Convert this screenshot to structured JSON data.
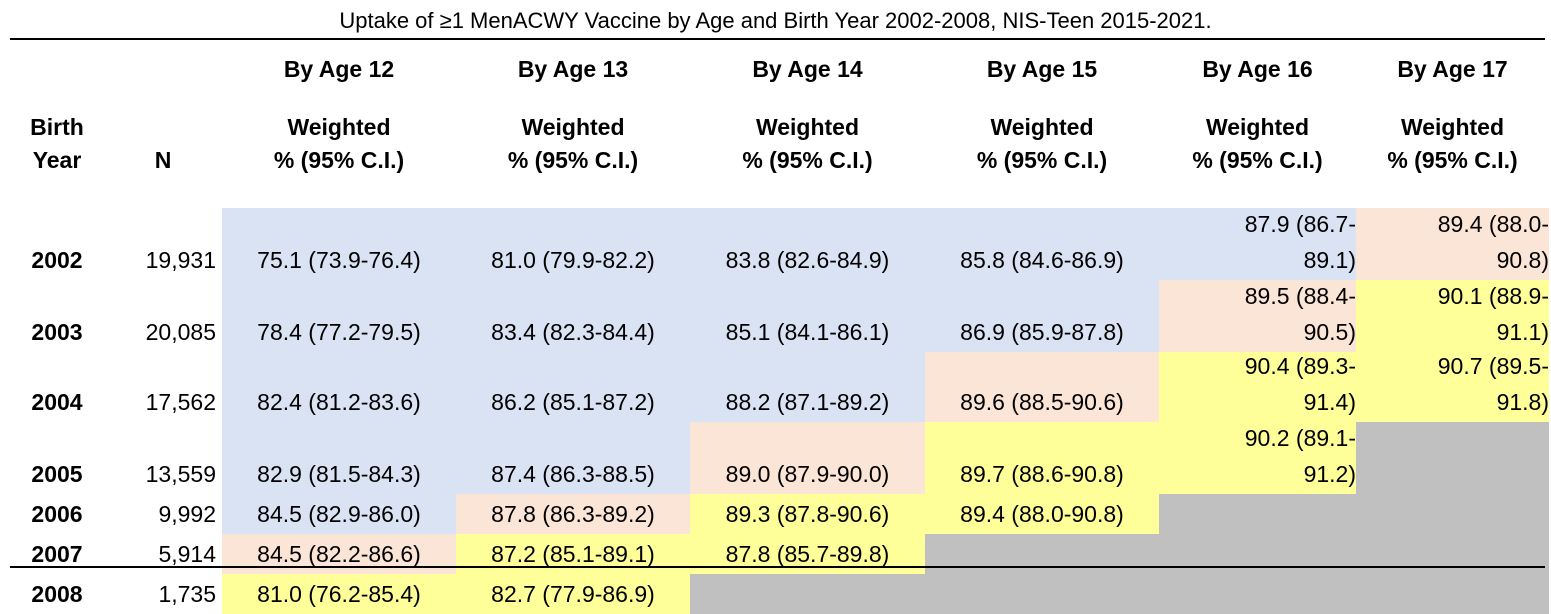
{
  "title": "Uptake of ≥1 MenACWY Vaccine by Age and Birth Year 2002-2008, NIS-Teen 2015-2021.",
  "header": {
    "birth_year_line1": "Birth",
    "birth_year_line2": "Year",
    "n_label": "N",
    "ages": [
      "By Age 12",
      "By Age 13",
      "By Age 14",
      "By Age 15",
      "By Age 16",
      "By Age 17"
    ],
    "weighted_line1": "Weighted",
    "weighted_line2": "% (95% C.I.)"
  },
  "colors": {
    "blue": "#dae3f3",
    "peach": "#fbe5d6",
    "yellow": "#ffff99",
    "gray": "#c0c0c0"
  },
  "rows": [
    {
      "year": "2002",
      "n": "19,931",
      "cells": [
        {
          "text": "75.1 (73.9-76.4)",
          "color": "blue"
        },
        {
          "text": "81.0 (79.9-82.2)",
          "color": "blue"
        },
        {
          "text": "83.8 (82.6-84.9)",
          "color": "blue"
        },
        {
          "text": "85.8 (84.6-86.9)",
          "color": "blue"
        },
        {
          "text": "87.9 (86.7-89.1)",
          "line1": "87.9 (86.7-",
          "line2": "89.1)",
          "color": "blue"
        },
        {
          "text": "89.4 (88.0-90.8)",
          "line1": "89.4 (88.0-",
          "line2": "90.8)",
          "color": "peach"
        }
      ]
    },
    {
      "year": "2003",
      "n": "20,085",
      "cells": [
        {
          "text": "78.4 (77.2-79.5)",
          "color": "blue"
        },
        {
          "text": "83.4 (82.3-84.4)",
          "color": "blue"
        },
        {
          "text": "85.1 (84.1-86.1)",
          "color": "blue"
        },
        {
          "text": "86.9 (85.9-87.8)",
          "color": "blue"
        },
        {
          "text": "89.5 (88.4-90.5)",
          "line1": "89.5 (88.4-",
          "line2": "90.5)",
          "color": "peach"
        },
        {
          "text": "90.1 (88.9-91.1)",
          "line1": "90.1 (88.9-",
          "line2": "91.1)",
          "color": "yellow"
        }
      ]
    },
    {
      "year": "2004",
      "n": "17,562",
      "cells": [
        {
          "text": "82.4 (81.2-83.6)",
          "color": "blue"
        },
        {
          "text": "86.2 (85.1-87.2)",
          "color": "blue"
        },
        {
          "text": "88.2 (87.1-89.2)",
          "color": "blue"
        },
        {
          "text": "89.6 (88.5-90.6)",
          "color": "peach"
        },
        {
          "text": "90.4 (89.3-91.4)",
          "line1": "90.4 (89.3-",
          "line2": "91.4)",
          "color": "yellow"
        },
        {
          "text": "90.7 (89.5-91.8)",
          "line1": "90.7 (89.5-",
          "line2": "91.8)",
          "color": "yellow"
        }
      ]
    },
    {
      "year": "2005",
      "n": "13,559",
      "cells": [
        {
          "text": "82.9 (81.5-84.3)",
          "color": "blue"
        },
        {
          "text": "87.4 (86.3-88.5)",
          "color": "blue"
        },
        {
          "text": "89.0 (87.9-90.0)",
          "color": "peach"
        },
        {
          "text": "89.7 (88.6-90.8)",
          "color": "yellow"
        },
        {
          "text": "90.2 (89.1-91.2)",
          "line1": "90.2 (89.1-",
          "line2": "91.2)",
          "color": "yellow"
        },
        {
          "text": "",
          "color": "gray"
        }
      ]
    },
    {
      "year": "2006",
      "n": "9,992",
      "cells": [
        {
          "text": "84.5 (82.9-86.0)",
          "color": "blue"
        },
        {
          "text": "87.8 (86.3-89.2)",
          "color": "peach"
        },
        {
          "text": "89.3 (87.8-90.6)",
          "color": "yellow"
        },
        {
          "text": "89.4 (88.0-90.8)",
          "color": "yellow"
        },
        {
          "text": "",
          "color": "gray"
        },
        {
          "text": "",
          "color": "gray"
        }
      ]
    },
    {
      "year": "2007",
      "n": "5,914",
      "cells": [
        {
          "text": "84.5 (82.2-86.6)",
          "color": "peach"
        },
        {
          "text": "87.2 (85.1-89.1)",
          "color": "yellow"
        },
        {
          "text": "87.8 (85.7-89.8)",
          "color": "yellow"
        },
        {
          "text": "",
          "color": "gray"
        },
        {
          "text": "",
          "color": "gray"
        },
        {
          "text": "",
          "color": "gray"
        }
      ]
    },
    {
      "year": "2008",
      "n": "1,735",
      "cells": [
        {
          "text": "81.0 (76.2-85.4)",
          "color": "yellow"
        },
        {
          "text": "82.7 (77.9-86.9)",
          "color": "yellow"
        },
        {
          "text": "",
          "color": "gray"
        },
        {
          "text": "",
          "color": "gray"
        },
        {
          "text": "",
          "color": "gray"
        },
        {
          "text": "",
          "color": "gray"
        }
      ]
    }
  ]
}
